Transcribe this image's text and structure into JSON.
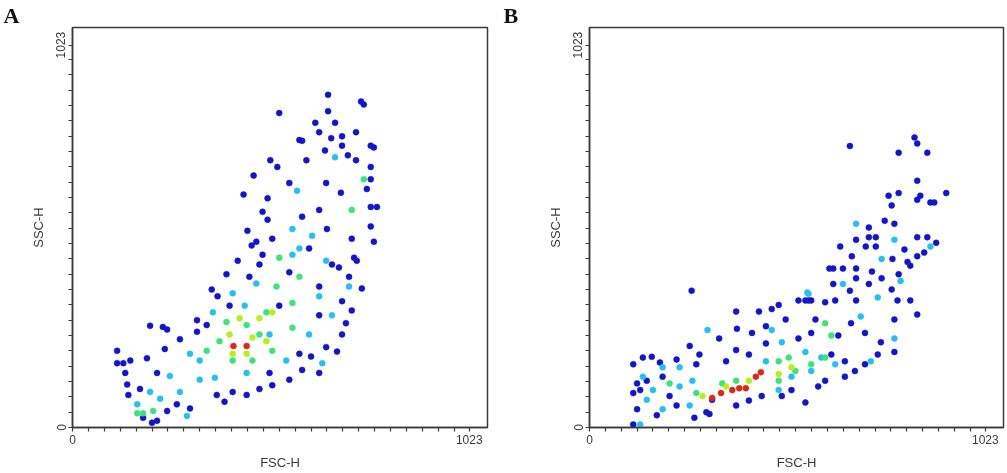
{
  "chart_data": [
    {
      "type": "scatter",
      "title": "A",
      "xlabel": "FSC-H",
      "ylabel": "SSC-H",
      "xlim": [
        0,
        1070
      ],
      "ylim": [
        0,
        1070
      ],
      "xticks": [
        0,
        {
          "value": 41,
          "label": null
        },
        {
          "value": 82,
          "label": null
        },
        {
          "value": 123,
          "label": null
        },
        {
          "value": 164,
          "label": null
        },
        {
          "value": 205,
          "label": null
        },
        {
          "value": 246,
          "label": null
        },
        {
          "value": 287,
          "label": null
        },
        {
          "value": 328,
          "label": null
        },
        {
          "value": 369,
          "label": null
        },
        {
          "value": 410,
          "label": null
        },
        {
          "value": 451,
          "label": null
        },
        {
          "value": 492,
          "label": null
        },
        {
          "value": 533,
          "label": null
        },
        {
          "value": 574,
          "label": null
        },
        {
          "value": 615,
          "label": null
        },
        {
          "value": 656,
          "label": null
        },
        {
          "value": 697,
          "label": null
        },
        {
          "value": 738,
          "label": null
        },
        {
          "value": 779,
          "label": null
        },
        {
          "value": 820,
          "label": null
        },
        {
          "value": 861,
          "label": null
        },
        {
          "value": 902,
          "label": null
        },
        {
          "value": 943,
          "label": null
        },
        {
          "value": 984,
          "label": null
        },
        1023
      ],
      "yticks": [
        0,
        {
          "value": 41,
          "label": null
        },
        {
          "value": 82,
          "label": null
        },
        {
          "value": 123,
          "label": null
        },
        {
          "value": 164,
          "label": null
        },
        {
          "value": 205,
          "label": null
        },
        {
          "value": 246,
          "label": null
        },
        {
          "value": 287,
          "label": null
        },
        {
          "value": 328,
          "label": null
        },
        {
          "value": 369,
          "label": null
        },
        {
          "value": 410,
          "label": null
        },
        {
          "value": 451,
          "label": null
        },
        {
          "value": 492,
          "label": null
        },
        {
          "value": 533,
          "label": null
        },
        {
          "value": 574,
          "label": null
        },
        {
          "value": 615,
          "label": null
        },
        {
          "value": 656,
          "label": null
        },
        {
          "value": 697,
          "label": null
        },
        {
          "value": 738,
          "label": null
        },
        {
          "value": 779,
          "label": null
        },
        {
          "value": 820,
          "label": null
        },
        {
          "value": 861,
          "label": null
        },
        {
          "value": 902,
          "label": null
        },
        {
          "value": 943,
          "label": null
        },
        {
          "value": 984,
          "label": null
        },
        1023
      ],
      "grid": false,
      "series": [
        {
          "color": "#1414c8",
          "x": [
            659,
            744,
            751,
            533,
            659,
            626,
            677,
            636,
            585,
            592,
            667,
            695,
            731,
            695,
            769,
            777,
            510,
            651,
            710,
            731,
            528,
            603,
            769,
            467,
            769,
            559,
            654,
            441,
            503,
            692,
            759,
            769,
            785,
            490,
            769,
            451,
            503,
            592,
            636,
            656,
            777,
            720,
            515,
            474,
            115,
            115,
            131,
            149,
            136,
            141,
            144,
            200,
            233,
            244,
            238,
            277,
            192,
            218,
            174,
            182,
            205,
            218,
            244,
            269,
            303,
            321,
            321,
            346,
            359,
            374,
            397,
            426,
            462,
            482,
            490,
            413,
            372,
            392,
            449,
            482,
            515,
            559,
            592,
            636,
            615,
            654,
            682,
            695,
            705,
            720,
            746,
            695,
            713,
            733,
            669,
            636,
            559,
            610,
            687,
            533,
            456,
            636,
            585,
            508,
            405,
            726
          ],
          "values": [
            890,
            872,
            864,
            841,
            846,
            815,
            815,
            790,
            769,
            767,
            774,
            779,
            790,
            754,
            754,
            749,
            715,
            741,
            728,
            715,
            697,
            715,
            697,
            674,
            664,
            654,
            654,
            623,
            613,
            628,
            638,
            590,
            590,
            577,
            538,
            526,
            556,
            564,
            582,
            531,
            497,
            505,
            505,
            497,
            205,
            172,
            172,
            179,
            146,
            115,
            87,
            272,
            269,
            262,
            210,
            236,
            185,
            146,
            103,
            26,
            13,
            18,
            44,
            62,
            51,
            287,
            256,
            274,
            369,
            351,
            410,
            446,
            487,
            436,
            462,
            95,
            87,
            69,
            87,
            103,
            113,
            128,
            154,
            146,
            190,
            215,
            203,
            249,
            279,
            313,
            372,
            338,
            403,
            446,
            436,
            377,
            415,
            479,
            428,
            326,
            403,
            300,
            197,
            146,
            326,
            454
          ]
        },
        {
          "color": "#28bff0",
          "x": [
            677,
            579,
            618,
            567,
            167,
            226,
            277,
            251,
            328,
            362,
            413,
            567,
            644,
            669,
            610,
            551,
            449,
            474,
            328,
            200,
            654,
            295,
            444,
            636,
            585,
            508,
            713,
            303,
            367
          ],
          "values": [
            723,
            633,
            513,
            531,
            62,
            77,
            95,
            138,
            179,
            308,
            359,
            462,
            172,
            300,
            249,
            179,
            146,
            385,
            128,
            95,
            446,
            31,
            326,
            351,
            479,
            249,
            377,
            197,
            133
          ]
        },
        {
          "color": "#3ee27a",
          "x": [
            751,
            720,
            182,
            208,
            346,
            379,
            413,
            449,
            482,
            500,
            526,
            567,
            567,
            464,
            515,
            397,
            533,
            585,
            167
          ],
          "values": [
            664,
            582,
            38,
            44,
            205,
            231,
            179,
            274,
            249,
            308,
            377,
            333,
            267,
            179,
            205,
            282,
            454,
            403,
            38
          ]
        },
        {
          "color": "#b4f01e",
          "x": [
            405,
            464,
            482,
            431,
            500,
            449,
            515,
            413
          ],
          "values": [
            249,
            241,
            292,
            292,
            231,
            197,
            308,
            197
          ]
        },
        {
          "color": "#dc2814",
          "x": [
            415,
            449
          ],
          "values": [
            218,
            218
          ]
        }
      ]
    },
    {
      "type": "scatter",
      "title": "B",
      "xlabel": "FSC-H",
      "ylabel": "SSC-H",
      "xlim": [
        0,
        1070
      ],
      "ylim": [
        0,
        1070
      ],
      "xticks": [
        0,
        {
          "value": 41,
          "label": null
        },
        {
          "value": 82,
          "label": null
        },
        {
          "value": 123,
          "label": null
        },
        {
          "value": 164,
          "label": null
        },
        {
          "value": 205,
          "label": null
        },
        {
          "value": 246,
          "label": null
        },
        {
          "value": 287,
          "label": null
        },
        {
          "value": 328,
          "label": null
        },
        {
          "value": 369,
          "label": null
        },
        {
          "value": 410,
          "label": null
        },
        {
          "value": 451,
          "label": null
        },
        {
          "value": 492,
          "label": null
        },
        {
          "value": 533,
          "label": null
        },
        {
          "value": 574,
          "label": null
        },
        {
          "value": 615,
          "label": null
        },
        {
          "value": 656,
          "label": null
        },
        {
          "value": 697,
          "label": null
        },
        {
          "value": 738,
          "label": null
        },
        {
          "value": 779,
          "label": null
        },
        {
          "value": 820,
          "label": null
        },
        {
          "value": 861,
          "label": null
        },
        {
          "value": 902,
          "label": null
        },
        {
          "value": 943,
          "label": null
        },
        {
          "value": 984,
          "label": null
        },
        1023
      ],
      "yticks": [
        0,
        {
          "value": 41,
          "label": null
        },
        {
          "value": 82,
          "label": null
        },
        {
          "value": 123,
          "label": null
        },
        {
          "value": 164,
          "label": null
        },
        {
          "value": 205,
          "label": null
        },
        {
          "value": 246,
          "label": null
        },
        {
          "value": 287,
          "label": null
        },
        {
          "value": 328,
          "label": null
        },
        {
          "value": 369,
          "label": null
        },
        {
          "value": 410,
          "label": null
        },
        {
          "value": 451,
          "label": null
        },
        {
          "value": 492,
          "label": null
        },
        {
          "value": 533,
          "label": null
        },
        {
          "value": 574,
          "label": null
        },
        {
          "value": 615,
          "label": null
        },
        {
          "value": 656,
          "label": null
        },
        {
          "value": 697,
          "label": null
        },
        {
          "value": 738,
          "label": null
        },
        {
          "value": 779,
          "label": null
        },
        {
          "value": 820,
          "label": null
        },
        {
          "value": 861,
          "label": null
        },
        {
          "value": 902,
          "label": null
        },
        {
          "value": 943,
          "label": null
        },
        {
          "value": 984,
          "label": null
        },
        1023
      ],
      "grid": false,
      "series": [
        {
          "color": "#1414c8",
          "x": [
            840,
            847,
            673,
            799,
            873,
            847,
            773,
            799,
            781,
            847,
            855,
            881,
            891,
            922,
            763,
            788,
            722,
            847,
            873,
            689,
            722,
            740,
            648,
            714,
            740,
            896,
            678,
            814,
            865,
            620,
            630,
            655,
            689,
            730,
            783,
            822,
            829,
            847,
            630,
            689,
            722,
            755,
            799,
            264,
            673,
            781,
            558,
            573,
            609,
            635,
            689,
            796,
            829,
            113,
            113,
            123,
            113,
            161,
            138,
            182,
            225,
            259,
            284,
            148,
            174,
            225,
            271,
            310,
            379,
            381,
            438,
            471,
            489,
            456,
            420,
            379,
            412,
            353,
            456,
            507,
            540,
            566,
            584,
            558,
            522,
            497,
            591,
            609,
            660,
            686,
            712,
            745,
            788,
            753,
            788,
            847,
            676,
            712,
            643,
            573,
            540,
            660,
            625,
            335,
            276,
            189,
            207,
            317,
            302,
            379,
            412,
            445,
            123,
            131
          ],
          "values": [
            776,
            760,
            753,
            735,
            735,
            660,
            620,
            627,
            594,
            609,
            620,
            602,
            602,
            627,
            553,
            545,
            535,
            509,
            509,
            502,
            509,
            509,
            484,
            484,
            484,
            494,
            458,
            476,
            468,
            425,
            425,
            425,
            425,
            417,
            451,
            443,
            433,
            458,
            384,
            399,
            384,
            399,
            410,
            366,
            366,
            369,
            340,
            340,
            335,
            340,
            340,
            340,
            340,
            169,
            92,
            49,
            8,
            189,
            187,
            174,
            182,
            218,
            195,
            125,
            33,
            59,
            26,
            36,
            310,
            264,
            310,
            317,
            328,
            271,
            253,
            207,
            195,
            177,
            225,
            289,
            340,
            340,
            289,
            67,
            100,
            84,
            110,
            125,
            136,
            151,
            169,
            195,
            202,
            228,
            289,
            302,
            279,
            253,
            246,
            253,
            238,
            177,
            195,
            238,
            169,
            136,
            84,
            74,
            41,
            59,
            72,
            84,
            118,
            100
          ]
        },
        {
          "color": "#28bff0",
          "x": [
            689,
            788,
            881,
            755,
            655,
            804,
            563,
            305,
            471,
            566,
            788,
            599,
            635,
            727,
            233,
            189,
            148,
            189,
            233,
            138,
            164,
            489,
            522,
            573,
            497,
            558,
            701,
            745,
            456,
            266,
            259,
            131
          ],
          "values": [
            545,
            502,
            484,
            451,
            384,
            392,
            361,
            261,
            261,
            358,
            238,
            187,
            169,
            177,
            161,
            161,
            74,
            49,
            110,
            136,
            100,
            100,
            136,
            151,
            228,
            202,
            297,
            348,
            177,
            125,
            59,
            8
          ]
        },
        {
          "color": "#3ee27a",
          "x": [
            207,
            276,
            343,
            379,
            489,
            532,
            573,
            609,
            625,
            609,
            489,
            515
          ],
          "values": [
            118,
            92,
            118,
            125,
            125,
            151,
            169,
            187,
            246,
            279,
            177,
            187
          ]
        },
        {
          "color": "#b4f01e",
          "x": [
            292,
            353,
            412,
            489,
            522
          ],
          "values": [
            84,
            110,
            125,
            143,
            161
          ]
        },
        {
          "color": "#dc2814",
          "x": [
            317,
            340,
            369,
            387,
            404,
            430,
            443
          ],
          "values": [
            79,
            92,
            100,
            105,
            105,
            136,
            148
          ]
        }
      ]
    }
  ]
}
